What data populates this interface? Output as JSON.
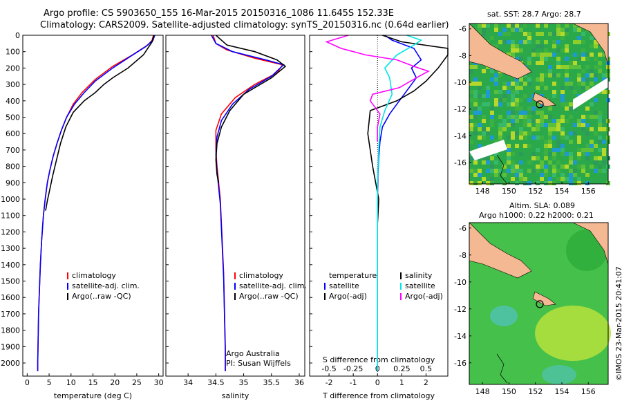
{
  "header": {
    "line1": "Argo profile: CS 5903650_155 16-Mar-2015 20150316_1086 11.645S 152.33E",
    "line2": "Climatology: CARS2009. Satellite-adjusted climatology: synTS_20150316.nc (0.64d earlier)"
  },
  "colors": {
    "clim": "#ff0000",
    "sat": "#0000ff",
    "argo": "#000000",
    "sat_s": "#00e5e5",
    "argo_s": "#ff00ff"
  },
  "chart_data": [
    {
      "type": "line",
      "name": "temperature",
      "xlabel": "temperature (deg C)",
      "xlim": [
        -1,
        31
      ],
      "xticks": [
        0,
        5,
        10,
        15,
        20,
        25,
        30
      ],
      "ylim": [
        0,
        2080
      ],
      "yticks": [
        0,
        100,
        200,
        300,
        400,
        500,
        600,
        700,
        800,
        900,
        1000,
        1100,
        1200,
        1300,
        1400,
        1500,
        1600,
        1700,
        1800,
        1900,
        2000
      ],
      "legend": [
        "climatology",
        "satellite-adj. clim.",
        "Argo(..raw -QC)"
      ],
      "series": [
        {
          "name": "climatology",
          "color": "#ff0000",
          "x": [
            28.8,
            28.5,
            27.5,
            24,
            19.5,
            15.5,
            12.5,
            10.5,
            9,
            7.8,
            6.8,
            5.9,
            5.2,
            4.6,
            4.1,
            3.7,
            3.3,
            3.0,
            2.8,
            2.6,
            2.5,
            2.4,
            2.4
          ],
          "y": [
            0,
            30,
            60,
            120,
            190,
            270,
            350,
            420,
            500,
            580,
            660,
            740,
            820,
            900,
            1000,
            1100,
            1250,
            1400,
            1550,
            1700,
            1850,
            2000,
            2050
          ]
        },
        {
          "name": "satellite-adj. clim.",
          "color": "#0000ff",
          "x": [
            29.1,
            28.7,
            27,
            23.5,
            19.5,
            15.5,
            13,
            10.8,
            9,
            7.8,
            6.8,
            5.9,
            5.2,
            4.6,
            4.1,
            3.7,
            3.3,
            3.0,
            2.8,
            2.6,
            2.5,
            2.4,
            2.4
          ],
          "y": [
            0,
            30,
            70,
            130,
            200,
            280,
            350,
            420,
            500,
            580,
            660,
            740,
            820,
            900,
            1000,
            1100,
            1250,
            1400,
            1550,
            1700,
            1850,
            2000,
            2050
          ]
        },
        {
          "name": "Argo(..raw -QC)",
          "color": "#000000",
          "x": [
            28.9,
            28.5,
            26.5,
            23,
            19.5,
            17.5,
            15.5,
            13,
            10.5,
            8.8,
            7.6,
            6.7,
            5.8,
            5.0,
            4.6,
            4.2
          ],
          "y": [
            0,
            40,
            120,
            200,
            260,
            300,
            350,
            400,
            470,
            560,
            660,
            760,
            860,
            960,
            1010,
            1070
          ]
        }
      ]
    },
    {
      "type": "line",
      "name": "salinity",
      "xlabel": "salinity",
      "xlim": [
        33.6,
        36.1
      ],
      "xticks": [
        34,
        34.5,
        35,
        35.5,
        36
      ],
      "ylim": [
        0,
        2080
      ],
      "legend": [
        "climatology",
        "satellite-adj. clim.",
        "Argo(..raw -QC)"
      ],
      "series": [
        {
          "name": "climatology",
          "color": "#ff0000",
          "x": [
            34.45,
            34.5,
            34.7,
            35.2,
            35.7,
            35.6,
            35.2,
            34.85,
            34.6,
            34.5,
            34.5,
            34.52,
            34.55,
            34.58,
            34.6,
            34.62,
            34.64,
            34.65,
            34.66,
            34.67,
            34.67
          ],
          "y": [
            0,
            50,
            90,
            140,
            180,
            230,
            300,
            380,
            480,
            580,
            700,
            800,
            900,
            1000,
            1150,
            1300,
            1450,
            1600,
            1750,
            1900,
            2050
          ]
        },
        {
          "name": "satellite-adj. clim.",
          "color": "#0000ff",
          "x": [
            34.42,
            34.5,
            34.8,
            35.4,
            35.72,
            35.5,
            35.1,
            34.8,
            34.6,
            34.52,
            34.5,
            34.52,
            34.55,
            34.58,
            34.6,
            34.62,
            34.64,
            34.65,
            34.66,
            34.67,
            34.67
          ],
          "y": [
            0,
            50,
            100,
            150,
            180,
            250,
            330,
            420,
            520,
            620,
            730,
            830,
            930,
            1030,
            1180,
            1330,
            1480,
            1630,
            1780,
            1930,
            2050
          ]
        },
        {
          "name": "Argo(..raw -QC)",
          "color": "#000000",
          "x": [
            34.5,
            34.7,
            35.2,
            35.6,
            35.75,
            35.5,
            35.0,
            34.75,
            34.6,
            34.52,
            34.5,
            34.52,
            34.55
          ],
          "y": [
            0,
            60,
            100,
            150,
            190,
            260,
            360,
            460,
            560,
            660,
            760,
            850,
            900
          ]
        }
      ]
    },
    {
      "type": "line",
      "name": "difference",
      "xlabel": "T difference from climatology",
      "xlabel2": "S difference from climatology",
      "xlim": [
        -2.8,
        2.9
      ],
      "xticks": [
        -2,
        -1,
        0,
        1,
        2
      ],
      "xticks2": [
        -0.5,
        -0.25,
        0,
        0.25,
        0.5
      ],
      "ylim": [
        0,
        2080
      ],
      "legend_left": [
        "temperature",
        "satellite",
        "Argo(-adj)"
      ],
      "legend_right": [
        "salinity",
        "satellite",
        "Argo(-adj)"
      ],
      "series": [
        {
          "name": "temperature satellite",
          "color": "#0000ff",
          "x": [
            0.3,
            0.6,
            1.5,
            1.8,
            1.4,
            1.6,
            1.3,
            0.9,
            0.5,
            0.2,
            0.1,
            0.05,
            0.02,
            0,
            0,
            0
          ],
          "y": [
            0,
            30,
            80,
            150,
            200,
            260,
            320,
            400,
            480,
            560,
            650,
            750,
            850,
            1000,
            1500,
            2050
          ]
        },
        {
          "name": "temperature Argo(-adj)",
          "color": "#000000",
          "x": [
            0.2,
            1,
            2.9,
            2.9,
            2.5,
            2,
            1.5,
            0.8,
            -0.3,
            -0.4,
            -0.2,
            0.05,
            0.02,
            0
          ],
          "y": [
            0,
            40,
            80,
            120,
            200,
            280,
            340,
            400,
            460,
            600,
            800,
            1000,
            1100,
            1150
          ]
        },
        {
          "name": "salinity satellite",
          "color": "#00e5e5",
          "x": [
            1.2,
            1.8,
            1.5,
            0.8,
            0.3,
            0.5,
            0.6,
            0.3,
            0.1,
            0.05,
            0,
            0,
            0,
            0
          ],
          "y": [
            0,
            30,
            60,
            120,
            200,
            260,
            360,
            460,
            560,
            700,
            900,
            1200,
            1600,
            2050
          ]
        },
        {
          "name": "salinity Argo(-adj)",
          "color": "#ff00ff",
          "x": [
            -1.2,
            -2.1,
            -1.5,
            -0.5,
            0.8,
            1.5,
            2.1,
            1.6,
            0.9,
            -0.2,
            -0.3,
            0.1,
            0,
            0
          ],
          "y": [
            0,
            40,
            80,
            120,
            150,
            190,
            220,
            260,
            320,
            360,
            400,
            480,
            560,
            650
          ]
        }
      ]
    }
  ],
  "notes": {
    "line1": "Argo Australia",
    "line2": "PI: Susan Wijffels"
  },
  "maps": {
    "top_title": "sat. SST: 28.7 Argo: 28.7",
    "bottom_title1": "Altim. SLA: 0.089",
    "bottom_title2": "Argo h1000: 0.22 h2000: 0.21",
    "xticks": [
      "148",
      "150",
      "152",
      "154",
      "156"
    ],
    "yticks": [
      "-6",
      "-8",
      "-10",
      "-12",
      "-14",
      "-16"
    ],
    "marker": {
      "lon": 152.33,
      "lat": -11.645
    },
    "lon_range": [
      147,
      157.5
    ],
    "lat_range": [
      -17.6,
      -5.6
    ]
  },
  "footer": "©IMOS 23-Mar-2015 20:41:07"
}
